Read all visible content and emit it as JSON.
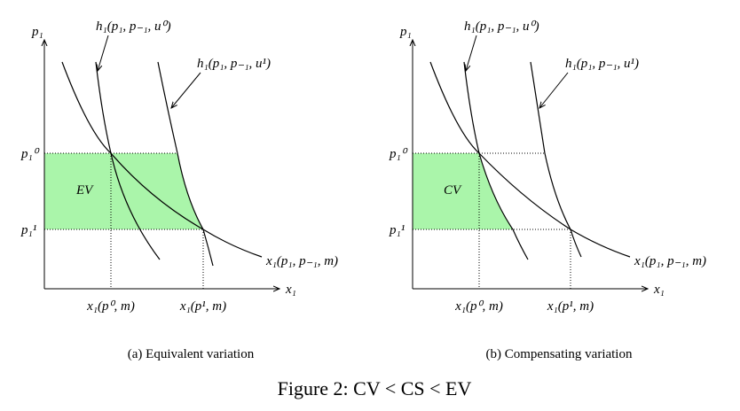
{
  "figure": {
    "caption": "Figure 2: CV < CS < EV",
    "panels": [
      {
        "caption": "(a) Equivalent variation",
        "y_axis": "p₁",
        "x_axis": "x₁",
        "y_ticks": [
          "p₁⁰",
          "p₁¹"
        ],
        "x_ticks": [
          "x₁(p⁰, m)",
          "x₁(p¹, m)"
        ],
        "region": "EV",
        "curves": [
          "h₁(p₁, p₋₁, u⁰)",
          "h₁(p₁, p₋₁, u¹)",
          "x₁(p₁, p₋₁, m)"
        ]
      },
      {
        "caption": "(b) Compensating variation",
        "y_axis": "p₁",
        "x_axis": "x₁",
        "y_ticks": [
          "p₁⁰",
          "p₁¹"
        ],
        "x_ticks": [
          "x₁(p⁰, m)",
          "x₁(p¹, m)"
        ],
        "region": "CV",
        "curves": [
          "h₁(p₁, p₋₁, u⁰)",
          "h₁(p₁, p₋₁, u¹)",
          "x₁(p₁, p₋₁, m)"
        ]
      }
    ]
  }
}
